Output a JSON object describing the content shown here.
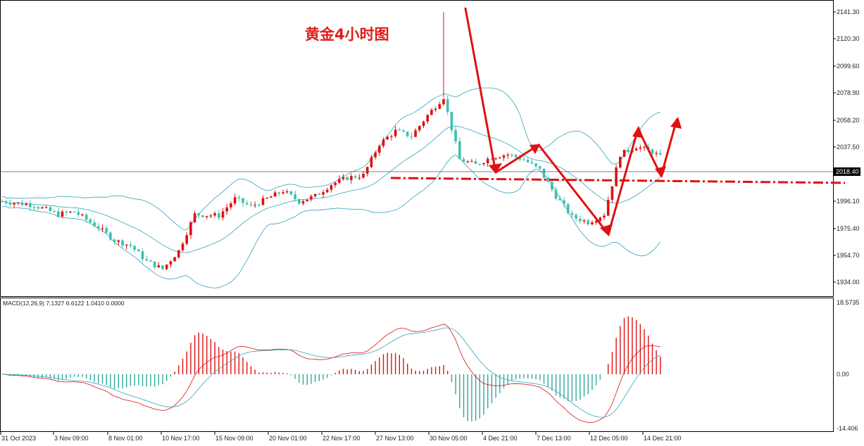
{
  "chart_data": {
    "type": "candlestick",
    "title": "黄金4小时图",
    "price_axis": {
      "ticks": [
        "2141.30",
        "2120.30",
        "2099.60",
        "2078.90",
        "2058.20",
        "2037.50",
        "1996.10",
        "1975.40",
        "1954.70",
        "1934.00"
      ],
      "range": [
        1928,
        2146
      ],
      "current_price": "2018.40"
    },
    "time_axis": {
      "ticks": [
        "31 Oct 2023",
        "3 Nov 09:00",
        "8 Nov 01:00",
        "10 Nov 17:00",
        "15 Nov 09:00",
        "20 Nov 01:00",
        "22 Nov 17:00",
        "27 Nov 13:00",
        "30 Nov 05:00",
        "4 Dec 21:00",
        "7 Dec 13:00",
        "12 Dec 05:00",
        "14 Dec 21:00"
      ]
    },
    "price_path": [
      [
        0,
        1996
      ],
      [
        8,
        1993
      ],
      [
        14,
        1986
      ],
      [
        18,
        1988
      ],
      [
        24,
        1976
      ],
      [
        28,
        1966
      ],
      [
        32,
        1962
      ],
      [
        36,
        1950
      ],
      [
        40,
        1944
      ],
      [
        44,
        1958
      ],
      [
        48,
        1986
      ],
      [
        54,
        1985
      ],
      [
        58,
        1998
      ],
      [
        62,
        1992
      ],
      [
        66,
        1998
      ],
      [
        70,
        2004
      ],
      [
        74,
        1996
      ],
      [
        78,
        2000
      ],
      [
        82,
        2009
      ],
      [
        86,
        2014
      ],
      [
        90,
        2016
      ],
      [
        94,
        2040
      ],
      [
        98,
        2050
      ],
      [
        102,
        2046
      ],
      [
        106,
        2062
      ],
      [
        110,
        2076
      ],
      [
        114,
        2028
      ],
      [
        118,
        2024
      ],
      [
        122,
        2030
      ],
      [
        126,
        2032
      ],
      [
        130,
        2028
      ],
      [
        134,
        2020
      ],
      [
        138,
        2000
      ],
      [
        142,
        1984
      ],
      [
        146,
        1980
      ],
      [
        150,
        1986
      ],
      [
        154,
        2032
      ],
      [
        158,
        2038
      ],
      [
        162,
        2034
      ],
      [
        164,
        2030
      ]
    ],
    "indicator": {
      "label": "MACD(12,26,9) 7.1327 6.6122 1.0410 0.0000",
      "ticks": [
        "18.5735",
        "0.00",
        "-14.406"
      ],
      "range": [
        -14.406,
        18.5735
      ]
    }
  }
}
